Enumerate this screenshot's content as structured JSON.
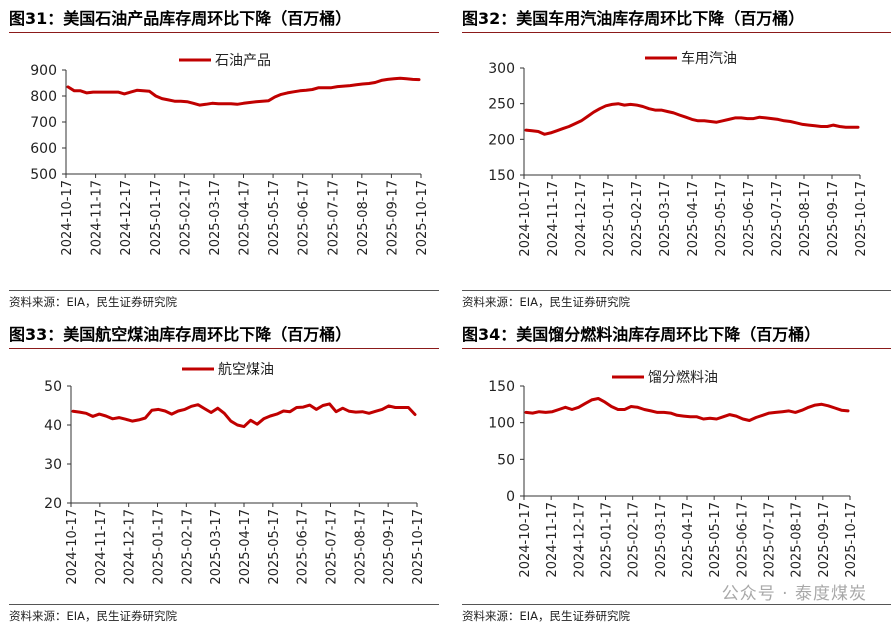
{
  "panels": [
    {
      "title": "图31：美国石油产品库存周环比下降（百万桶）",
      "source": "资料来源：EIA，民生证券研究院"
    },
    {
      "title": "图32：美国车用汽油库存周环比下降（百万桶）",
      "source": "资料来源：EIA，民生证券研究院"
    },
    {
      "title": "图33：美国航空煤油库存周环比下降（百万桶）",
      "source": "资料来源：EIA，民生证券研究院"
    },
    {
      "title": "图34：美国馏分燃料油库存周环比下降（百万桶）",
      "source": "资料来源：EIA，民生证券研究院"
    }
  ],
  "watermark": "公众号 · 泰度煤炭",
  "chart_data": [
    {
      "type": "line",
      "x_ticks": [
        "2024-10-17",
        "2024-11-17",
        "2024-12-17",
        "2025-01-17",
        "2025-02-17",
        "2025-03-17",
        "2025-04-17",
        "2025-05-17",
        "2025-06-17",
        "2025-07-17",
        "2025-08-17",
        "2025-09-17",
        "2025-10-17"
      ],
      "ylim": [
        500,
        900
      ],
      "yticks": [
        500,
        600,
        700,
        800,
        900
      ],
      "grid": false,
      "legend": "top-center",
      "color": "#c00000",
      "series": [
        {
          "name": "石油产品",
          "values": [
            835,
            820,
            820,
            812,
            815,
            815,
            815,
            815,
            815,
            808,
            815,
            822,
            820,
            818,
            800,
            790,
            785,
            780,
            780,
            778,
            772,
            765,
            768,
            772,
            770,
            770,
            770,
            768,
            772,
            775,
            778,
            780,
            782,
            796,
            806,
            812,
            816,
            820,
            822,
            825,
            832,
            832,
            832,
            836,
            838,
            840,
            843,
            846,
            848,
            852,
            860,
            864,
            866,
            868,
            866,
            864,
            863
          ]
        }
      ]
    },
    {
      "type": "line",
      "x_ticks": [
        "2024-10-17",
        "2024-11-17",
        "2024-12-17",
        "2025-01-17",
        "2025-02-17",
        "2025-03-17",
        "2025-04-17",
        "2025-05-17",
        "2025-06-17",
        "2025-07-17",
        "2025-08-17",
        "2025-09-17",
        "2025-10-17"
      ],
      "ylim": [
        150,
        300
      ],
      "yticks": [
        150,
        200,
        250,
        300
      ],
      "grid": false,
      "legend": "top-center",
      "color": "#c00000",
      "series": [
        {
          "name": "车用汽油",
          "values": [
            213,
            212,
            211,
            207,
            209,
            212,
            215,
            218,
            222,
            226,
            232,
            238,
            243,
            247,
            249,
            250,
            248,
            249,
            248,
            246,
            243,
            241,
            241,
            239,
            237,
            234,
            231,
            228,
            226,
            226,
            225,
            224,
            226,
            228,
            230,
            230,
            229,
            229,
            231,
            230,
            229,
            228,
            226,
            225,
            223,
            221,
            220,
            219,
            218,
            218,
            220,
            218,
            217,
            217,
            217
          ]
        }
      ]
    },
    {
      "type": "line",
      "x_ticks": [
        "2024-10-17",
        "2024-11-17",
        "2024-12-17",
        "2025-01-17",
        "2025-02-17",
        "2025-03-17",
        "2025-04-17",
        "2025-05-17",
        "2025-06-17",
        "2025-07-17",
        "2025-08-17",
        "2025-09-17",
        "2025-10-17"
      ],
      "ylim": [
        20,
        50
      ],
      "yticks": [
        20,
        30,
        40,
        50
      ],
      "grid": false,
      "legend": "top-center",
      "color": "#c00000",
      "series": [
        {
          "name": "航空煤油",
          "values": [
            43.5,
            43.3,
            43.0,
            42.2,
            42.8,
            42.3,
            41.6,
            41.9,
            41.5,
            41.0,
            41.3,
            41.8,
            43.8,
            44.0,
            43.6,
            42.8,
            43.6,
            44.0,
            44.8,
            45.2,
            44.2,
            43.2,
            44.3,
            43.0,
            41.0,
            40.0,
            39.6,
            41.2,
            40.2,
            41.6,
            42.3,
            42.8,
            43.6,
            43.4,
            44.5,
            44.6,
            45.1,
            44.0,
            45.0,
            45.4,
            43.4,
            44.3,
            43.5,
            43.3,
            43.4,
            43.0,
            43.5,
            44.0,
            44.9,
            44.5,
            44.5,
            44.5,
            42.7
          ]
        }
      ]
    },
    {
      "type": "line",
      "x_ticks": [
        "2024-10-17",
        "2024-11-17",
        "2024-12-17",
        "2025-01-17",
        "2025-02-17",
        "2025-03-17",
        "2025-04-17",
        "2025-05-17",
        "2025-06-17",
        "2025-07-17",
        "2025-08-17",
        "2025-09-17",
        "2025-10-17"
      ],
      "ylim": [
        0,
        150
      ],
      "yticks": [
        0,
        50,
        100,
        150
      ],
      "grid": false,
      "legend": "top-center",
      "color": "#c00000",
      "series": [
        {
          "name": "馏分燃料油",
          "values": [
            114,
            113,
            115,
            114,
            115,
            118,
            121,
            118,
            121,
            126,
            131,
            133,
            128,
            122,
            118,
            118,
            122,
            121,
            118,
            116,
            114,
            114,
            113,
            110,
            109,
            108,
            108,
            105,
            106,
            105,
            108,
            111,
            109,
            105,
            103,
            107,
            110,
            113,
            114,
            115,
            116,
            114,
            117,
            121,
            124,
            125,
            123,
            120,
            117,
            116
          ]
        }
      ]
    }
  ]
}
